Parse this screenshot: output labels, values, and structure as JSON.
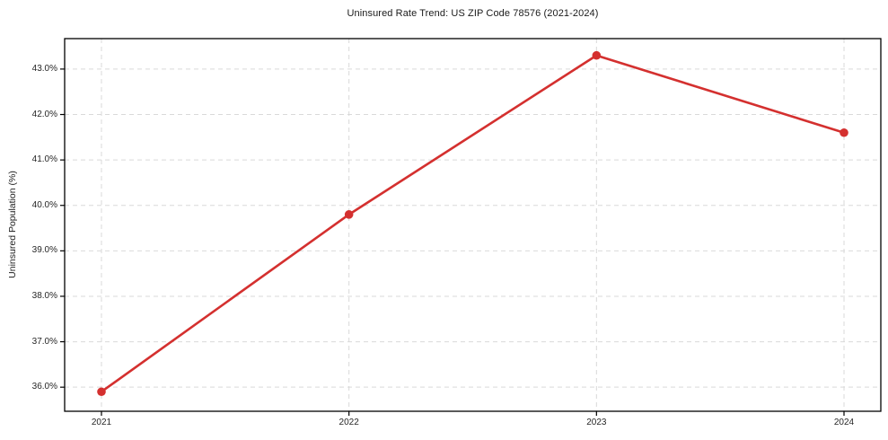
{
  "chart_data": {
    "type": "line",
    "title": "Uninsured Rate Trend: US ZIP Code 78576 (2021-2024)",
    "xlabel": "",
    "ylabel": "Uninsured Population (%)",
    "x": [
      "2021",
      "2022",
      "2023",
      "2024"
    ],
    "series": [
      {
        "name": "Uninsured Population (%)",
        "values": [
          35.9,
          39.8,
          43.3,
          41.6
        ]
      }
    ],
    "xtick_labels": [
      "2021",
      "2022",
      "2023",
      "2024"
    ],
    "yticks": [
      36.0,
      37.0,
      38.0,
      39.0,
      40.0,
      41.0,
      42.0,
      43.0
    ],
    "ytick_labels": [
      "36.0%",
      "37.0%",
      "38.0%",
      "39.0%",
      "40.0%",
      "41.0%",
      "42.0%",
      "43.0%"
    ],
    "ylim": [
      35.47,
      43.67
    ],
    "grid": true,
    "grid_style": "dashed",
    "legend_position": "none",
    "colors": {
      "line": "#d4302f",
      "marker": "#d4302f",
      "grid": "#d9d9d9",
      "axis": "#000000",
      "tick_text": "#262626",
      "background": "#ffffff"
    }
  }
}
